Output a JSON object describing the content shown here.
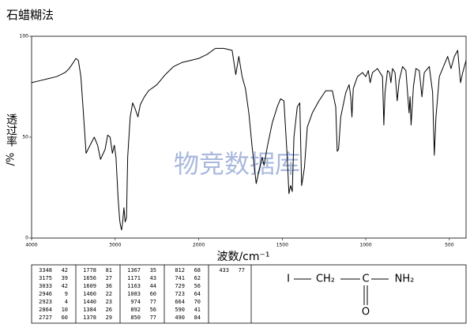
{
  "chart_data": {
    "type": "line",
    "title": "石蜡糊法",
    "xlabel": "波数/cm⁻¹",
    "ylabel": "透过率",
    "ylabel_unit": "/%",
    "watermark": "物竞数据库",
    "xlim": [
      4000,
      400
    ],
    "x_scale_break": 2000,
    "x_scale_break_factor": 2,
    "xticks": [
      4000,
      3000,
      2000,
      1500,
      1000,
      500
    ],
    "ylim": [
      0,
      100
    ],
    "yticks": [
      0,
      50,
      100
    ],
    "series": [
      {
        "name": "IR",
        "color": "#000000",
        "x": [
          4000,
          3900,
          3800,
          3700,
          3600,
          3550,
          3500,
          3470,
          3440,
          3410,
          3380,
          3348,
          3300,
          3250,
          3210,
          3175,
          3120,
          3090,
          3060,
          3033,
          3010,
          2990,
          2965,
          2946,
          2935,
          2923,
          2910,
          2895,
          2880,
          2864,
          2850,
          2820,
          2790,
          2760,
          2727,
          2700,
          2650,
          2600,
          2500,
          2400,
          2300,
          2200,
          2100,
          2000,
          1950,
          1900,
          1850,
          1800,
          1778,
          1760,
          1740,
          1720,
          1700,
          1680,
          1656,
          1640,
          1620,
          1609,
          1590,
          1560,
          1530,
          1510,
          1490,
          1470,
          1460,
          1450,
          1440,
          1430,
          1410,
          1395,
          1384,
          1378,
          1367,
          1350,
          1320,
          1280,
          1240,
          1200,
          1180,
          1171,
          1163,
          1150,
          1120,
          1100,
          1090,
          1083,
          1075,
          1050,
          1020,
          1000,
          985,
          974,
          960,
          930,
          900,
          892,
          885,
          870,
          858,
          850,
          840,
          825,
          812,
          800,
          780,
          760,
          741,
          735,
          729,
          723,
          715,
          700,
          680,
          664,
          650,
          620,
          600,
          590,
          580,
          560,
          530,
          510,
          490,
          470,
          450,
          433,
          420,
          400
        ],
        "values": [
          77,
          78,
          79,
          80,
          82,
          84,
          87,
          89,
          88,
          80,
          62,
          42,
          46,
          50,
          46,
          39,
          44,
          51,
          50,
          42,
          46,
          40,
          20,
          9,
          6,
          4,
          8,
          15,
          8,
          10,
          40,
          60,
          67,
          64,
          60,
          66,
          70,
          73,
          76,
          81,
          85,
          87,
          88,
          89,
          91,
          94,
          94,
          93,
          81,
          90,
          80,
          74,
          62,
          45,
          27,
          33,
          40,
          36,
          45,
          57,
          65,
          69,
          68,
          40,
          22,
          26,
          23,
          50,
          65,
          67,
          26,
          29,
          35,
          55,
          62,
          68,
          73,
          73,
          65,
          43,
          44,
          60,
          72,
          76,
          70,
          60,
          74,
          80,
          82,
          80,
          83,
          77,
          82,
          84,
          80,
          56,
          72,
          83,
          82,
          77,
          84,
          82,
          68,
          78,
          85,
          83,
          62,
          70,
          56,
          64,
          75,
          84,
          83,
          70,
          82,
          85,
          72,
          41,
          60,
          80,
          86,
          90,
          84,
          90,
          93,
          77,
          82,
          88
        ]
      }
    ]
  },
  "peak_table": [
    [
      3348,
      42
    ],
    [
      3175,
      39
    ],
    [
      3033,
      42
    ],
    [
      2946,
      9
    ],
    [
      2923,
      4
    ],
    [
      2864,
      10
    ],
    [
      2727,
      60
    ],
    [
      1778,
      81
    ],
    [
      1656,
      27
    ],
    [
      1609,
      36
    ],
    [
      1460,
      22
    ],
    [
      1440,
      23
    ],
    [
      1384,
      26
    ],
    [
      1378,
      29
    ],
    [
      1367,
      35
    ],
    [
      1171,
      43
    ],
    [
      1163,
      44
    ],
    [
      1083,
      60
    ],
    [
      974,
      77
    ],
    [
      892,
      56
    ],
    [
      850,
      77
    ],
    [
      812,
      68
    ],
    [
      741,
      62
    ],
    [
      729,
      56
    ],
    [
      723,
      64
    ],
    [
      664,
      70
    ],
    [
      590,
      41
    ],
    [
      490,
      84
    ],
    [
      433,
      77
    ]
  ],
  "structure": {
    "atoms": [
      "I",
      "CH₂",
      "C",
      "NH₂",
      "O"
    ]
  }
}
